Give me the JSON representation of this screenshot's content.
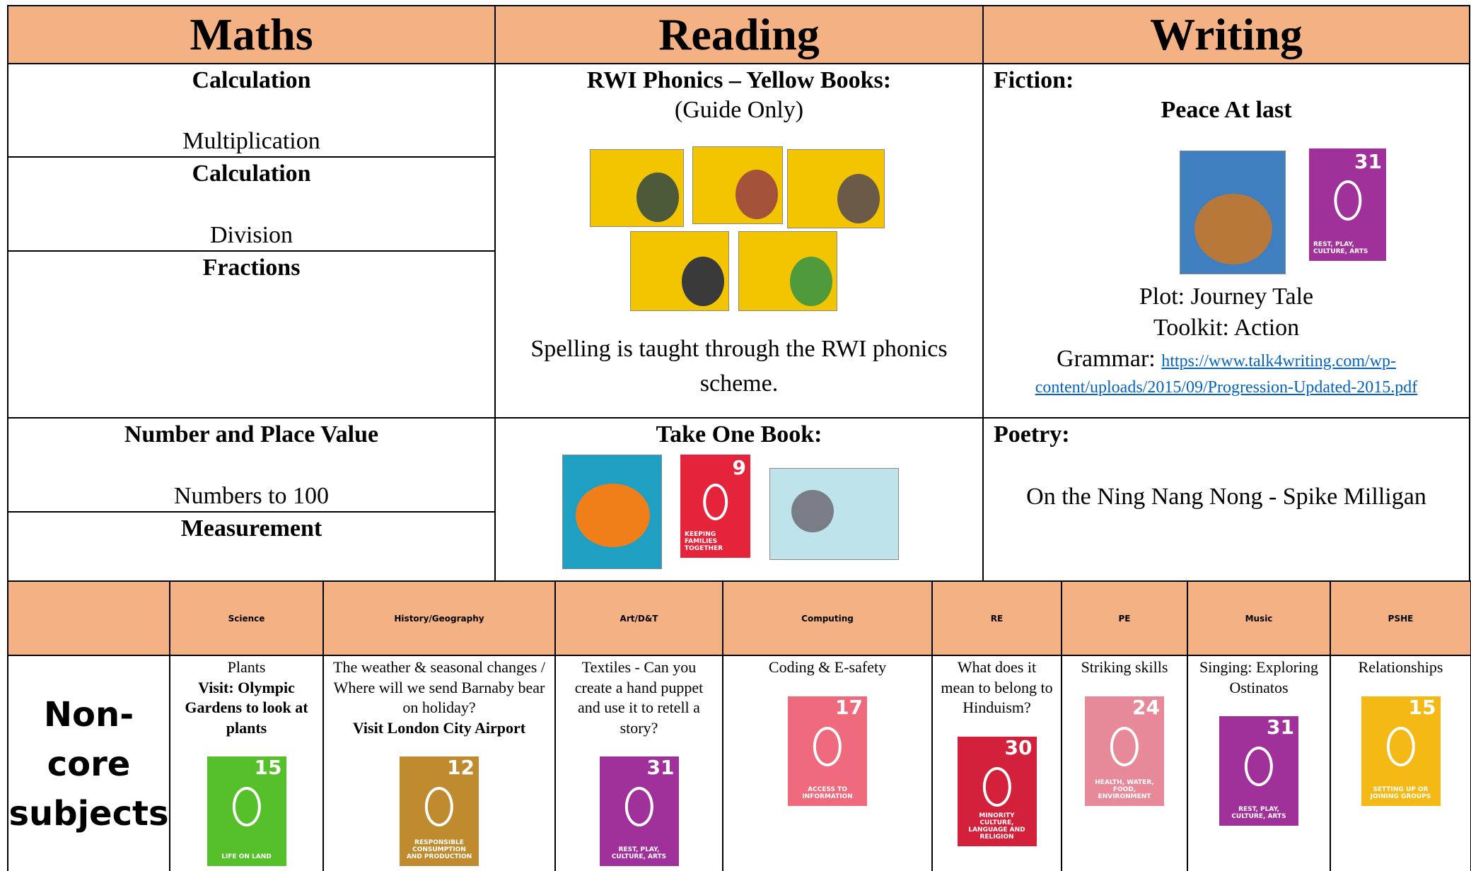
{
  "header": {
    "maths": "Maths",
    "reading": "Reading",
    "writing": "Writing"
  },
  "maths": [
    {
      "title": "Calculation",
      "text": "Multiplication"
    },
    {
      "title": "Calculation",
      "text": "Division"
    },
    {
      "title": "Fractions"
    },
    {
      "title": "Number and Place Value",
      "text": "Numbers to 100"
    },
    {
      "title": "Measurement"
    }
  ],
  "reading": {
    "title": "RWI Phonics – Yellow Books:",
    "note": "(Guide Only)",
    "spelling": "Spelling is taught through the RWI phonics scheme.",
    "take_one_book": "Take One Book:",
    "icon": {
      "number": "9",
      "label": "Keeping families together",
      "color": "#e5243b"
    }
  },
  "writing": {
    "fiction": "Fiction:",
    "book": "Peace At last",
    "icon": {
      "number": "31",
      "label": "Rest, play, culture, arts",
      "color": "#a0309a"
    },
    "plot": "Plot: Journey Tale",
    "toolkit": "Toolkit: Action",
    "grammar_label": "Grammar:",
    "grammar_link": "https://www.talk4writing.com/wp-content/uploads/2015/09/Progression-Updated-2015.pdf",
    "poetry": "Poetry:",
    "poem": "On the Ning Nang Nong - Spike Milligan"
  },
  "noncore": {
    "label": "Non-core subjects",
    "subjects": [
      {
        "name": "Science",
        "text": "Plants",
        "bold": "Visit: Olympic Gardens to look at plants",
        "icon": {
          "number": "15",
          "label": "Life on land",
          "color": "#56c02b"
        }
      },
      {
        "name": "History/Geography",
        "text": "The weather & seasonal changes / Where will we send Barnaby bear on holiday?",
        "bold": "Visit London City Airport",
        "icon": {
          "number": "12",
          "label": "Responsible consumption and production",
          "color": "#bf8b2e"
        }
      },
      {
        "name": "Art/D&T",
        "text": "Textiles - Can you create a hand puppet and use it to retell a story?",
        "icon": {
          "number": "31",
          "label": "Rest, play, culture, arts",
          "color": "#a0309a"
        }
      },
      {
        "name": "Computing",
        "text": "Coding & E-safety",
        "icon": {
          "number": "17",
          "label": "Access to information",
          "color": "#ee6a7c"
        }
      },
      {
        "name": "RE",
        "text": "What does it mean to belong to Hinduism?",
        "icon": {
          "number": "30",
          "label": "Minority culture, language and religion",
          "color": "#d3213b"
        }
      },
      {
        "name": "PE",
        "text": "Striking skills",
        "icon": {
          "number": "24",
          "label": "Health, water, food, environment",
          "color": "#e8899a"
        }
      },
      {
        "name": "Music",
        "text": "Singing: Exploring Ostinatos",
        "icon": {
          "number": "31",
          "label": "Rest, play, culture, arts",
          "color": "#a0309a"
        }
      },
      {
        "name": "PSHE",
        "text": "Relationships",
        "icon": {
          "number": "15",
          "label": "Setting up or joining groups",
          "color": "#f5b915"
        }
      }
    ]
  }
}
